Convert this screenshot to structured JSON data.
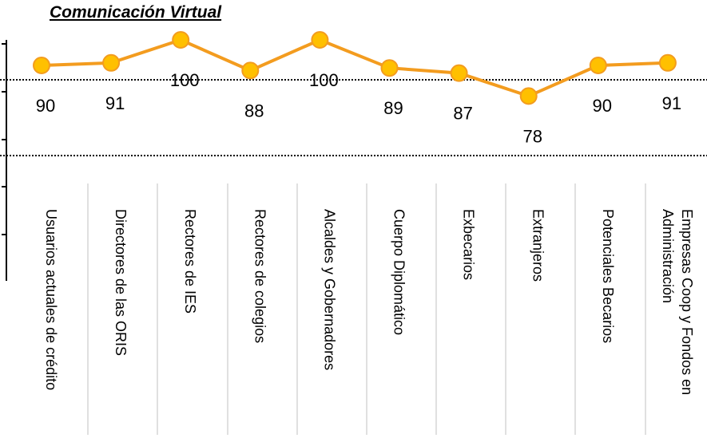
{
  "chart_data": {
    "type": "line",
    "title": "Comunicación Virtual",
    "categories": [
      "Usuarios actuales de crédito",
      "Directores de las ORIS",
      "Rectores de IES",
      "Rectores de colegios",
      "Alcaldes y Gobernadores",
      "Cuerpo Diplomático",
      "Exbecarios",
      "Extranjeros",
      "Potenciales Becarios",
      "Empresas Coop y Fondos en Administración"
    ],
    "values": [
      90,
      91,
      100,
      88,
      100,
      89,
      87,
      78,
      90,
      91
    ],
    "color": "#f39c1f",
    "marker_color": "#ffc000",
    "ylim": [
      60,
      100
    ]
  }
}
